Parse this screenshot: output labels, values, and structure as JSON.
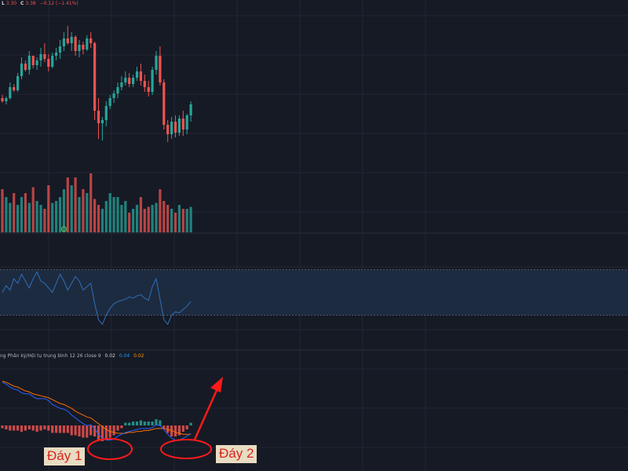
{
  "header": {
    "legend_items": [
      {
        "label": "L",
        "value": "3.30"
      },
      {
        "label": "C",
        "value": "3.38"
      }
    ],
    "change_text": "−0.12 (−1.41%)"
  },
  "macd": {
    "title_text": "ng Phân kỳ/Hội tụ trung bình",
    "params_text": "12 26 close 9",
    "values": {
      "white": "0.02",
      "blue": "0.04",
      "orange": "0.02"
    }
  },
  "annotations": {
    "day1_label": "Đáy 1",
    "day2_label": "Đáy 2"
  },
  "colors": {
    "background": "#161a25",
    "grid": "#232733",
    "up": "#26a69a",
    "down": "#ef5350",
    "rsi_line": "#2f6fb8",
    "rsi_band": "#1d2b40",
    "macd_line": "#2962ff",
    "signal_line": "#ff6d00",
    "annotation": "#ff1a1a"
  },
  "chart_data": {
    "type": "candlestick",
    "candles": [
      [
        10,
        12,
        7,
        8
      ],
      [
        8,
        11,
        6,
        10
      ],
      [
        10,
        20,
        9,
        17
      ],
      [
        17,
        19,
        14,
        15
      ],
      [
        15,
        26,
        14,
        24
      ],
      [
        24,
        36,
        22,
        32
      ],
      [
        32,
        34,
        27,
        28
      ],
      [
        28,
        40,
        25,
        37
      ],
      [
        37,
        37,
        29,
        31
      ],
      [
        31,
        36,
        28,
        34
      ],
      [
        34,
        42,
        30,
        38
      ],
      [
        38,
        45,
        33,
        35
      ],
      [
        35,
        38,
        27,
        30
      ],
      [
        30,
        39,
        29,
        37
      ],
      [
        37,
        42,
        34,
        39
      ],
      [
        39,
        47,
        35,
        43
      ],
      [
        43,
        52,
        40,
        48
      ],
      [
        48,
        56,
        44,
        45
      ],
      [
        45,
        52,
        40,
        49
      ],
      [
        49,
        50,
        37,
        40
      ],
      [
        40,
        47,
        36,
        44
      ],
      [
        44,
        46,
        38,
        41
      ],
      [
        41,
        50,
        40,
        48
      ],
      [
        48,
        52,
        42,
        45
      ],
      [
        45,
        46,
        -4,
        2
      ],
      [
        2,
        10,
        -16,
        -6
      ],
      [
        -6,
        -2,
        -17,
        -4
      ],
      [
        -4,
        8,
        -8,
        5
      ],
      [
        5,
        12,
        3,
        10
      ],
      [
        10,
        15,
        7,
        13
      ],
      [
        13,
        20,
        10,
        17
      ],
      [
        17,
        24,
        15,
        20
      ],
      [
        20,
        27,
        18,
        23
      ],
      [
        23,
        26,
        17,
        19
      ],
      [
        19,
        25,
        17,
        23
      ],
      [
        23,
        30,
        21,
        27
      ],
      [
        27,
        32,
        18,
        21
      ],
      [
        21,
        25,
        14,
        17
      ],
      [
        17,
        21,
        11,
        14
      ],
      [
        14,
        30,
        12,
        28
      ],
      [
        28,
        40,
        25,
        37
      ],
      [
        37,
        43,
        18,
        20
      ],
      [
        20,
        22,
        -10,
        -7
      ],
      [
        -7,
        -4,
        -18,
        -13
      ],
      [
        -13,
        -2,
        -16,
        -5
      ],
      [
        -5,
        -1,
        -15,
        -12
      ],
      [
        -12,
        -1,
        -14,
        -3
      ],
      [
        -3,
        2,
        -14,
        -10
      ],
      [
        -10,
        0,
        -13,
        -1
      ],
      [
        -1,
        8,
        -5,
        6
      ]
    ],
    "volume": [
      22,
      18,
      15,
      20,
      14,
      18,
      20,
      15,
      23,
      16,
      14,
      12,
      24,
      15,
      16,
      18,
      22,
      28,
      24,
      28,
      18,
      22,
      20,
      30,
      17,
      14,
      12,
      16,
      20,
      18,
      18,
      14,
      16,
      10,
      12,
      14,
      18,
      12,
      13,
      14,
      15,
      22,
      16,
      14,
      12,
      10,
      14,
      12,
      12,
      13
    ],
    "rsi": [
      50,
      56,
      52,
      62,
      58,
      66,
      60,
      54,
      62,
      68,
      60,
      58,
      54,
      50,
      58,
      66,
      60,
      52,
      58,
      64,
      60,
      52,
      55,
      58,
      40,
      26,
      22,
      30,
      36,
      40,
      42,
      43,
      44,
      46,
      45,
      47,
      48,
      45,
      43,
      55,
      62,
      44,
      26,
      22,
      30,
      33,
      32,
      35,
      38,
      42
    ],
    "macd": [
      78,
      76,
      73,
      71,
      70,
      67,
      66,
      66,
      63,
      61,
      61,
      61,
      59,
      55,
      53,
      51,
      50,
      48,
      44,
      41,
      38,
      35,
      33,
      34,
      30,
      24,
      20,
      18,
      18,
      19,
      22,
      24,
      26,
      27,
      28,
      29,
      30,
      30,
      30,
      31,
      34,
      33,
      29,
      24,
      20,
      18,
      18,
      20,
      22,
      25
    ],
    "signal": [
      79,
      78,
      76,
      74,
      73,
      71,
      69,
      68,
      66,
      65,
      64,
      63,
      62,
      60,
      58,
      56,
      55,
      53,
      51,
      48,
      46,
      44,
      42,
      41,
      38,
      35,
      32,
      29,
      27,
      26,
      25,
      25,
      25,
      26,
      26,
      27,
      27,
      28,
      28,
      29,
      30,
      30,
      30,
      29,
      28,
      26,
      25,
      24,
      24,
      24
    ],
    "ylim_price": [
      -25,
      60
    ],
    "rsi_band": [
      30,
      70
    ],
    "rsi_ylim": [
      0,
      100
    ],
    "macd_ylim": [
      -10,
      100
    ]
  }
}
